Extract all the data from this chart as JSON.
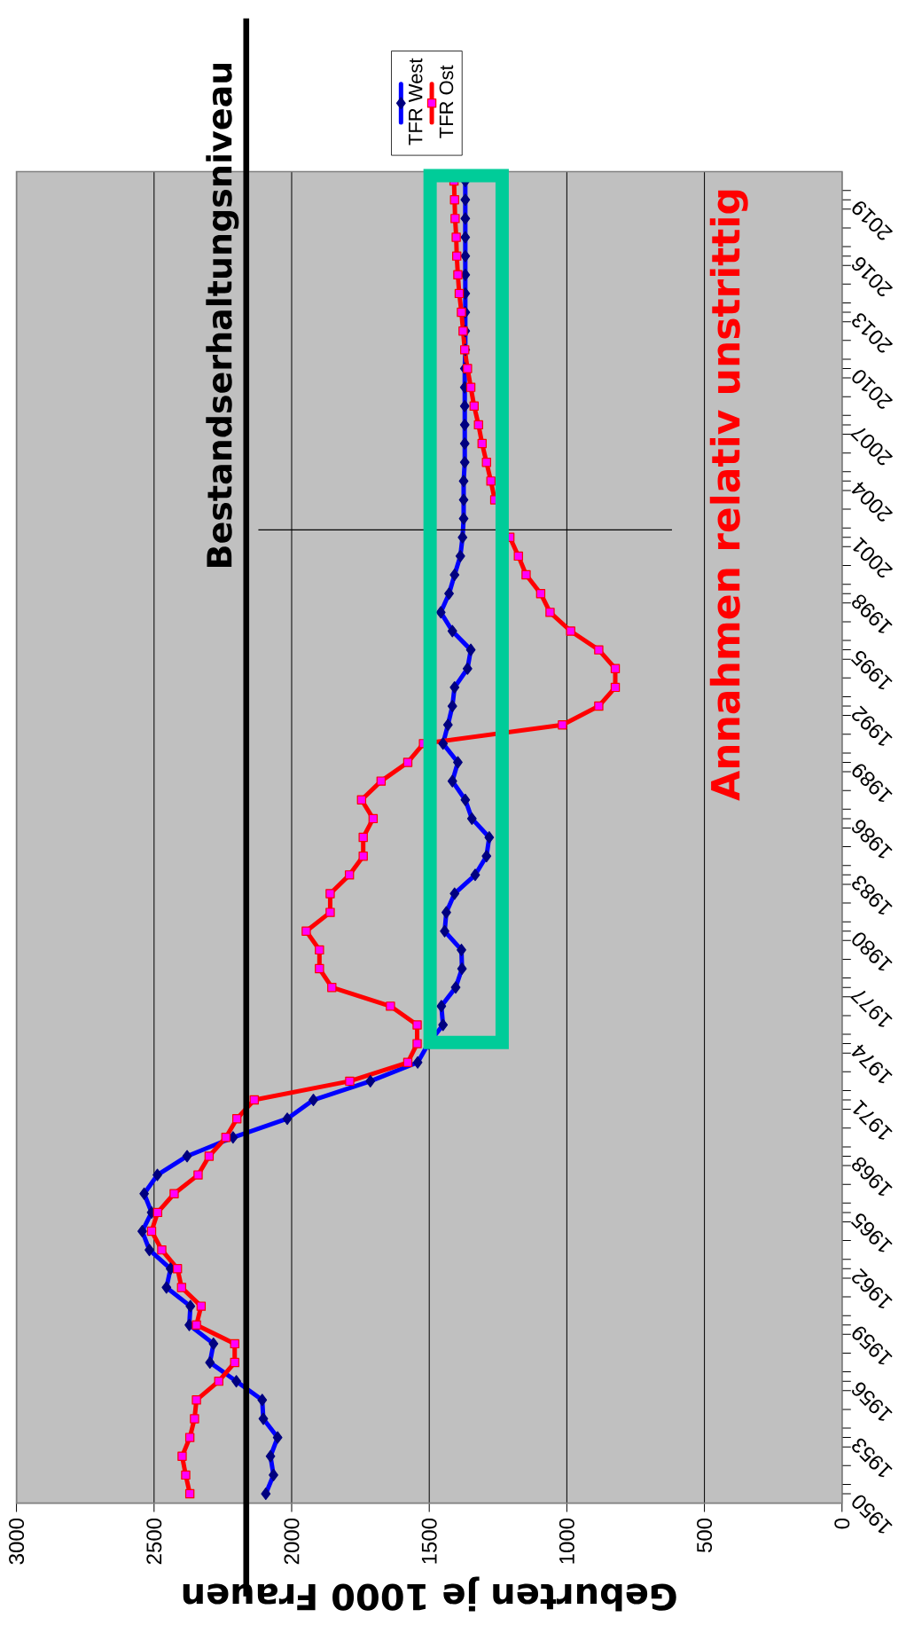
{
  "chart_data": {
    "type": "line",
    "orientation": "horizontal",
    "xlabel": "Geburten je 1000 Frauen",
    "x": [
      1950,
      1951,
      1952,
      1953,
      1954,
      1955,
      1956,
      1957,
      1958,
      1959,
      1960,
      1961,
      1962,
      1963,
      1964,
      1965,
      1966,
      1967,
      1968,
      1969,
      1970,
      1971,
      1972,
      1973,
      1974,
      1975,
      1976,
      1977,
      1978,
      1979,
      1980,
      1981,
      1982,
      1983,
      1984,
      1985,
      1986,
      1987,
      1988,
      1989,
      1990,
      1991,
      1992,
      1993,
      1994,
      1995,
      1996,
      1997,
      1998,
      1999,
      2000,
      2001,
      2002,
      2003,
      2004,
      2005,
      2006,
      2007,
      2008,
      2009,
      2010,
      2011,
      2012,
      2013,
      2014,
      2015,
      2016,
      2017,
      2018,
      2019,
      2020
    ],
    "ylim": [
      1949.5,
      2020.5
    ],
    "yticks": [
      1950,
      1953,
      1956,
      1959,
      1962,
      1965,
      1968,
      1971,
      1974,
      1977,
      1980,
      1983,
      1986,
      1989,
      1992,
      1995,
      1998,
      2001,
      2004,
      2007,
      2010,
      2013,
      2016,
      2019
    ],
    "xlim": [
      3000,
      0
    ],
    "xticks": [
      3000,
      2500,
      2000,
      1500,
      1000,
      500,
      0
    ],
    "grid": "x",
    "legend": "top",
    "series": [
      {
        "name": "TFR West",
        "color": "#0000ff",
        "marker": "diamond",
        "values": [
          2094,
          2066,
          2077,
          2051,
          2103,
          2107,
          2201,
          2297,
          2284,
          2372,
          2368,
          2455,
          2440,
          2517,
          2543,
          2509,
          2536,
          2488,
          2380,
          2213,
          2016,
          1921,
          1714,
          1542,
          1503,
          1450,
          1456,
          1404,
          1381,
          1383,
          1444,
          1438,
          1408,
          1333,
          1292,
          1282,
          1345,
          1369,
          1416,
          1396,
          1450,
          1432,
          1416,
          1408,
          1361,
          1349,
          1416,
          1458,
          1428,
          1408,
          1387,
          1379,
          1375,
          1375,
          1375,
          1371,
          1371,
          1371,
          1371,
          1371,
          1371,
          1369,
          1369,
          1369,
          1369,
          1369,
          1369,
          1369,
          1369,
          1369,
          1369
        ]
      },
      {
        "name": "TFR Ost",
        "color": "#ff0000",
        "marker": "square",
        "values": [
          2370,
          2385,
          2398,
          2370,
          2353,
          2346,
          2265,
          2207,
          2207,
          2346,
          2329,
          2400,
          2415,
          2472,
          2509,
          2487,
          2427,
          2340,
          2300,
          2239,
          2199,
          2136,
          1789,
          1578,
          1544,
          1544,
          1641,
          1854,
          1899,
          1899,
          1947,
          1860,
          1860,
          1790,
          1740,
          1740,
          1704,
          1746,
          1675,
          1578,
          1521,
          1016,
          884,
          824,
          824,
          884,
          986,
          1061,
          1095,
          1148,
          1176,
          1207,
          null,
          1262,
          1276,
          1292,
          1308,
          1321,
          1337,
          1349,
          1361,
          1371,
          1377,
          1383,
          1391,
          1396,
          1400,
          1402,
          1406,
          1408,
          1410
        ]
      }
    ],
    "ref_lines": [
      {
        "axis": "x",
        "value": 2165,
        "label": "Bestandserhaltungsniveau",
        "color": "#000000"
      },
      {
        "axis": "y",
        "value": 2001.4,
        "color": "#000000"
      }
    ],
    "annotations": [
      "Annahmen relativ unstrittig"
    ]
  }
}
